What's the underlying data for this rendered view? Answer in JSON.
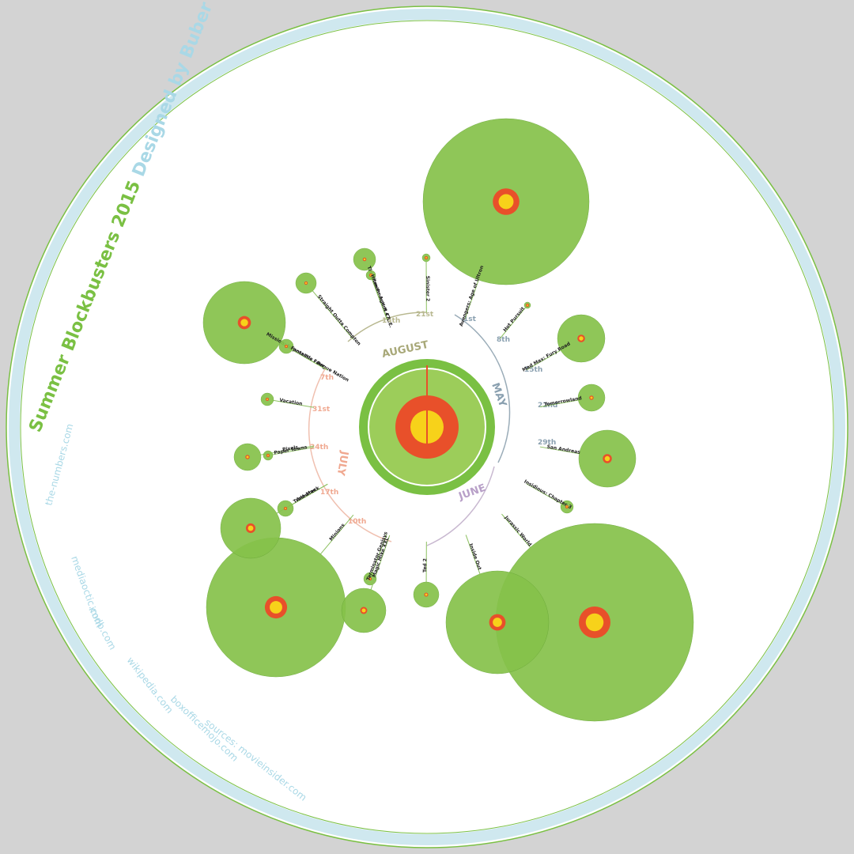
{
  "header": {
    "title": "Summer Blockbusters 2015",
    "subtitle": "Designed by Buber"
  },
  "sources": [
    "sources: movieinsider.com",
    "boxofficemojo.com",
    "wikipedia.com",
    "imdb.com",
    "mediaoctic.com",
    "the-numbers.com"
  ],
  "months": [
    "MAY",
    "JUNE",
    "JULY",
    "AUGUST"
  ],
  "weeks": [
    "1st",
    "8th",
    "15th",
    "22nd",
    "29th",
    "10th",
    "17th",
    "24th",
    "31st",
    "7th",
    "14th",
    "21st"
  ],
  "movies": [
    "Avengers: Age of Ultron",
    "Hot Pursuit",
    "Mad Max: Fury Road",
    "Tomorrowland",
    "San Andreas",
    "Insidious: Chapter 3",
    "Jurassic World",
    "Inside Out",
    "Ted 2",
    "Terminator Genisys",
    "Minions",
    "Magic Mike XXL",
    "Ant-Man",
    "Trainwreck",
    "Pixels",
    "Paper Towns",
    "Vacation",
    "Mission: Impossible - Rogue Nation",
    "Fantastic Four",
    "Straight Outta Compton",
    "The Man from U.N.C.L.E.",
    "Hitman: Agent 47",
    "Sinister 2"
  ]
}
